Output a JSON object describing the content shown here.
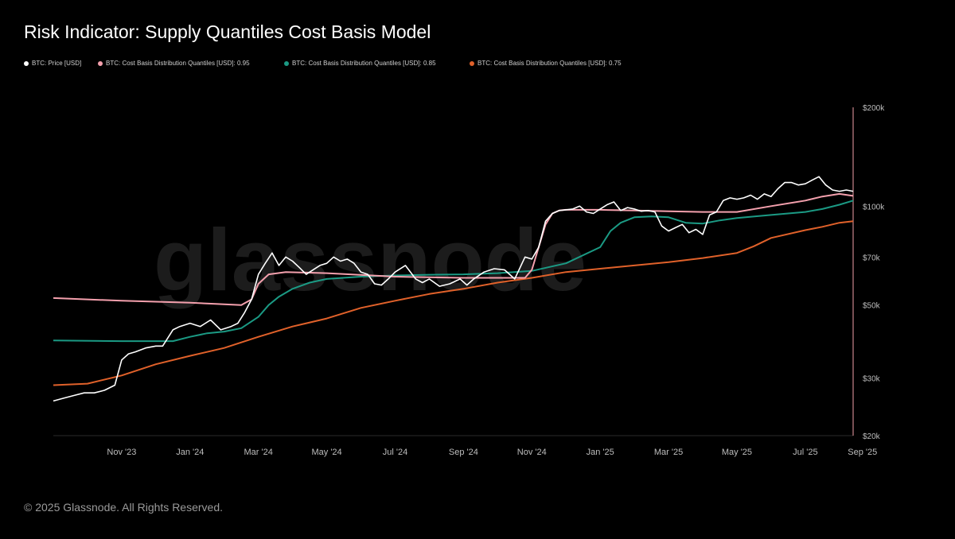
{
  "header": {
    "title": "Risk Indicator: Supply Quantiles Cost Basis Model"
  },
  "footer": {
    "copyright": "© 2025 Glassnode. All Rights Reserved."
  },
  "watermark": "glassnode",
  "colors": {
    "background": "#000000",
    "price": "#ffffff",
    "q95": "#f4a0ad",
    "q85": "#1b9a84",
    "q75": "#e0612a",
    "axis_line": "#f0a0a8"
  },
  "chart_data": {
    "type": "line",
    "title": "Risk Indicator: Supply Quantiles Cost Basis Model",
    "xlabel": "",
    "ylabel": "",
    "yscale": "log",
    "ylim": [
      20000,
      200000
    ],
    "xlim": [
      0,
      23.4
    ],
    "x_unit": "months since 2023-09-01",
    "x_ticks": [
      {
        "label": "Nov '23",
        "value": 2
      },
      {
        "label": "Jan '24",
        "value": 4
      },
      {
        "label": "Mar '24",
        "value": 6
      },
      {
        "label": "May '24",
        "value": 8
      },
      {
        "label": "Jul '24",
        "value": 10
      },
      {
        "label": "Sep '24",
        "value": 12
      },
      {
        "label": "Nov '24",
        "value": 14
      },
      {
        "label": "Jan '25",
        "value": 16
      },
      {
        "label": "Mar '25",
        "value": 18
      },
      {
        "label": "May '25",
        "value": 20
      },
      {
        "label": "Jul '25",
        "value": 22
      },
      {
        "label": "Sep '25",
        "value": 24
      }
    ],
    "y_ticks": [
      {
        "label": "$200k",
        "value": 200000
      },
      {
        "label": "$100k",
        "value": 100000
      },
      {
        "label": "$70k",
        "value": 70000
      },
      {
        "label": "$50k",
        "value": 50000
      },
      {
        "label": "$30k",
        "value": 30000
      },
      {
        "label": "$20k",
        "value": 20000
      }
    ],
    "legend_position": "top-left",
    "series": [
      {
        "name": "BTC: Price [USD]",
        "color": "#ffffff",
        "x": [
          0,
          0.3,
          0.6,
          0.9,
          1.2,
          1.5,
          1.8,
          2.0,
          2.2,
          2.4,
          2.7,
          3.0,
          3.2,
          3.5,
          3.7,
          4.0,
          4.3,
          4.6,
          4.9,
          5.2,
          5.4,
          5.6,
          5.8,
          6.0,
          6.2,
          6.4,
          6.6,
          6.8,
          7.0,
          7.2,
          7.4,
          7.6,
          7.8,
          8.0,
          8.2,
          8.4,
          8.6,
          8.8,
          9.0,
          9.2,
          9.4,
          9.6,
          9.8,
          10.0,
          10.3,
          10.6,
          10.8,
          11.0,
          11.3,
          11.6,
          11.9,
          12.1,
          12.3,
          12.6,
          12.9,
          13.2,
          13.5,
          13.8,
          14.0,
          14.2,
          14.4,
          14.6,
          14.8,
          15.0,
          15.2,
          15.4,
          15.6,
          15.8,
          16.0,
          16.2,
          16.4,
          16.6,
          16.8,
          17.0,
          17.2,
          17.4,
          17.6,
          17.8,
          18.0,
          18.2,
          18.4,
          18.6,
          18.8,
          19.0,
          19.2,
          19.4,
          19.6,
          19.8,
          20.0,
          20.2,
          20.4,
          20.6,
          20.8,
          21.0,
          21.2,
          21.4,
          21.6,
          21.8,
          22.0,
          22.2,
          22.4,
          22.6,
          22.8,
          23.0,
          23.2,
          23.4
        ],
        "values": [
          25500,
          26000,
          26500,
          27000,
          27000,
          27500,
          28500,
          34000,
          35500,
          36000,
          37000,
          37500,
          37500,
          42000,
          43000,
          44000,
          43000,
          45000,
          42000,
          43000,
          44000,
          47500,
          52000,
          62000,
          67000,
          72000,
          66000,
          70000,
          68000,
          65000,
          62000,
          64000,
          66000,
          67000,
          70000,
          68000,
          69000,
          67000,
          63000,
          62000,
          58000,
          57500,
          60000,
          63000,
          66000,
          60000,
          58500,
          60000,
          57000,
          58000,
          60000,
          57500,
          60000,
          63000,
          64500,
          64000,
          60000,
          70000,
          69000,
          75000,
          90000,
          95000,
          97000,
          97500,
          98000,
          100000,
          96000,
          95000,
          98000,
          101000,
          103000,
          97000,
          99000,
          98000,
          96500,
          97000,
          96000,
          87000,
          84000,
          86000,
          88000,
          83000,
          85000,
          82000,
          94000,
          96000,
          104000,
          106000,
          105000,
          106000,
          108000,
          105000,
          109000,
          107000,
          113000,
          118000,
          118000,
          116000,
          117000,
          120000,
          123000,
          116000,
          112000,
          111000,
          112000,
          111000
        ]
      },
      {
        "name": "BTC: Cost Basis Distribution Quantiles [USD]: 0.95",
        "color": "#f4a0ad",
        "x": [
          0,
          2,
          4,
          5.5,
          5.8,
          6.0,
          6.3,
          6.8,
          8,
          10,
          12,
          13.8,
          14.0,
          14.2,
          14.4,
          14.6,
          14.8,
          15.0,
          16,
          17,
          18,
          19,
          20,
          21,
          22,
          22.5,
          23,
          23.4
        ],
        "values": [
          52500,
          51500,
          50800,
          50000,
          52000,
          58000,
          62000,
          63000,
          62500,
          61000,
          60500,
          60500,
          64000,
          75000,
          88000,
          95000,
          97000,
          97500,
          97500,
          97000,
          96500,
          96000,
          96000,
          100000,
          104000,
          107000,
          109000,
          107500
        ]
      },
      {
        "name": "BTC: Cost Basis Distribution Quantiles [USD]: 0.85",
        "color": "#1b9a84",
        "x": [
          0,
          2,
          3.5,
          4.0,
          4.5,
          5.0,
          5.5,
          6.0,
          6.3,
          6.6,
          7.0,
          7.5,
          8,
          9,
          10,
          11,
          12,
          13,
          14,
          15,
          16,
          16.3,
          16.6,
          17,
          17.5,
          18,
          18.5,
          19,
          19.5,
          20,
          21,
          22,
          22.5,
          23,
          23.4
        ],
        "values": [
          39000,
          38800,
          38800,
          40000,
          41000,
          41500,
          42500,
          46000,
          50000,
          53000,
          56000,
          58500,
          60000,
          61000,
          61500,
          61800,
          62000,
          62500,
          63500,
          67000,
          75000,
          84000,
          89000,
          92500,
          93000,
          92500,
          89000,
          88500,
          90500,
          92000,
          94000,
          96000,
          98000,
          101000,
          104000
        ]
      },
      {
        "name": "BTC: Cost Basis Distribution Quantiles [USD]: 0.75",
        "color": "#e0612a",
        "x": [
          0,
          1,
          2,
          3,
          4,
          5,
          6,
          7,
          8,
          9,
          10,
          11,
          12,
          13,
          14,
          15,
          16,
          17,
          18,
          19,
          20,
          20.5,
          21,
          22,
          22.5,
          23,
          23.4
        ],
        "values": [
          28500,
          28800,
          30500,
          33000,
          35000,
          37000,
          40000,
          43000,
          45500,
          49000,
          51500,
          54000,
          56000,
          58500,
          60500,
          63000,
          64500,
          66000,
          67500,
          69500,
          72000,
          75500,
          80000,
          84500,
          86500,
          89000,
          90000
        ]
      }
    ]
  }
}
